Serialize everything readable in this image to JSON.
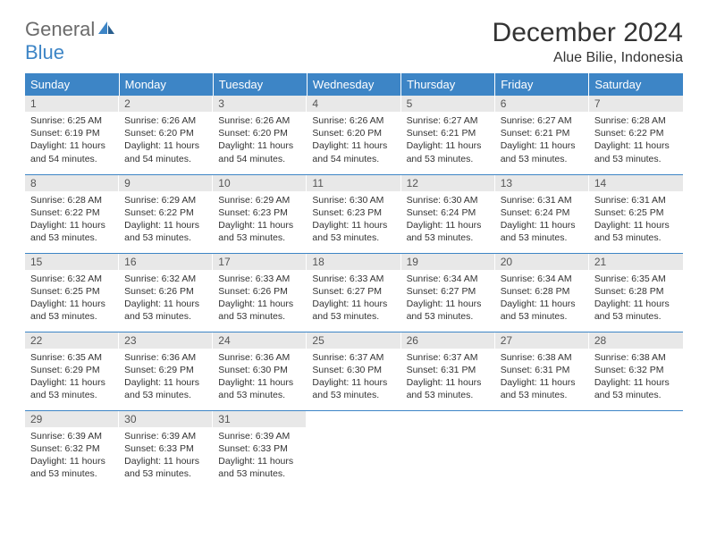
{
  "brand": {
    "part1": "General",
    "part2": "Blue"
  },
  "title": "December 2024",
  "location": "Alue Bilie, Indonesia",
  "colors": {
    "header_bg": "#3d85c6",
    "header_text": "#ffffff",
    "daynum_bg": "#e8e8e8",
    "border": "#3d85c6",
    "logo_gray": "#6b6b6b",
    "logo_blue": "#3d85c6"
  },
  "weekdays": [
    "Sunday",
    "Monday",
    "Tuesday",
    "Wednesday",
    "Thursday",
    "Friday",
    "Saturday"
  ],
  "weeks": [
    [
      {
        "d": "1",
        "sr": "6:25 AM",
        "ss": "6:19 PM",
        "dl": "11 hours and 54 minutes."
      },
      {
        "d": "2",
        "sr": "6:26 AM",
        "ss": "6:20 PM",
        "dl": "11 hours and 54 minutes."
      },
      {
        "d": "3",
        "sr": "6:26 AM",
        "ss": "6:20 PM",
        "dl": "11 hours and 54 minutes."
      },
      {
        "d": "4",
        "sr": "6:26 AM",
        "ss": "6:20 PM",
        "dl": "11 hours and 54 minutes."
      },
      {
        "d": "5",
        "sr": "6:27 AM",
        "ss": "6:21 PM",
        "dl": "11 hours and 53 minutes."
      },
      {
        "d": "6",
        "sr": "6:27 AM",
        "ss": "6:21 PM",
        "dl": "11 hours and 53 minutes."
      },
      {
        "d": "7",
        "sr": "6:28 AM",
        "ss": "6:22 PM",
        "dl": "11 hours and 53 minutes."
      }
    ],
    [
      {
        "d": "8",
        "sr": "6:28 AM",
        "ss": "6:22 PM",
        "dl": "11 hours and 53 minutes."
      },
      {
        "d": "9",
        "sr": "6:29 AM",
        "ss": "6:22 PM",
        "dl": "11 hours and 53 minutes."
      },
      {
        "d": "10",
        "sr": "6:29 AM",
        "ss": "6:23 PM",
        "dl": "11 hours and 53 minutes."
      },
      {
        "d": "11",
        "sr": "6:30 AM",
        "ss": "6:23 PM",
        "dl": "11 hours and 53 minutes."
      },
      {
        "d": "12",
        "sr": "6:30 AM",
        "ss": "6:24 PM",
        "dl": "11 hours and 53 minutes."
      },
      {
        "d": "13",
        "sr": "6:31 AM",
        "ss": "6:24 PM",
        "dl": "11 hours and 53 minutes."
      },
      {
        "d": "14",
        "sr": "6:31 AM",
        "ss": "6:25 PM",
        "dl": "11 hours and 53 minutes."
      }
    ],
    [
      {
        "d": "15",
        "sr": "6:32 AM",
        "ss": "6:25 PM",
        "dl": "11 hours and 53 minutes."
      },
      {
        "d": "16",
        "sr": "6:32 AM",
        "ss": "6:26 PM",
        "dl": "11 hours and 53 minutes."
      },
      {
        "d": "17",
        "sr": "6:33 AM",
        "ss": "6:26 PM",
        "dl": "11 hours and 53 minutes."
      },
      {
        "d": "18",
        "sr": "6:33 AM",
        "ss": "6:27 PM",
        "dl": "11 hours and 53 minutes."
      },
      {
        "d": "19",
        "sr": "6:34 AM",
        "ss": "6:27 PM",
        "dl": "11 hours and 53 minutes."
      },
      {
        "d": "20",
        "sr": "6:34 AM",
        "ss": "6:28 PM",
        "dl": "11 hours and 53 minutes."
      },
      {
        "d": "21",
        "sr": "6:35 AM",
        "ss": "6:28 PM",
        "dl": "11 hours and 53 minutes."
      }
    ],
    [
      {
        "d": "22",
        "sr": "6:35 AM",
        "ss": "6:29 PM",
        "dl": "11 hours and 53 minutes."
      },
      {
        "d": "23",
        "sr": "6:36 AM",
        "ss": "6:29 PM",
        "dl": "11 hours and 53 minutes."
      },
      {
        "d": "24",
        "sr": "6:36 AM",
        "ss": "6:30 PM",
        "dl": "11 hours and 53 minutes."
      },
      {
        "d": "25",
        "sr": "6:37 AM",
        "ss": "6:30 PM",
        "dl": "11 hours and 53 minutes."
      },
      {
        "d": "26",
        "sr": "6:37 AM",
        "ss": "6:31 PM",
        "dl": "11 hours and 53 minutes."
      },
      {
        "d": "27",
        "sr": "6:38 AM",
        "ss": "6:31 PM",
        "dl": "11 hours and 53 minutes."
      },
      {
        "d": "28",
        "sr": "6:38 AM",
        "ss": "6:32 PM",
        "dl": "11 hours and 53 minutes."
      }
    ],
    [
      {
        "d": "29",
        "sr": "6:39 AM",
        "ss": "6:32 PM",
        "dl": "11 hours and 53 minutes."
      },
      {
        "d": "30",
        "sr": "6:39 AM",
        "ss": "6:33 PM",
        "dl": "11 hours and 53 minutes."
      },
      {
        "d": "31",
        "sr": "6:39 AM",
        "ss": "6:33 PM",
        "dl": "11 hours and 53 minutes."
      },
      null,
      null,
      null,
      null
    ]
  ],
  "labels": {
    "sunrise": "Sunrise:",
    "sunset": "Sunset:",
    "daylight": "Daylight:"
  }
}
